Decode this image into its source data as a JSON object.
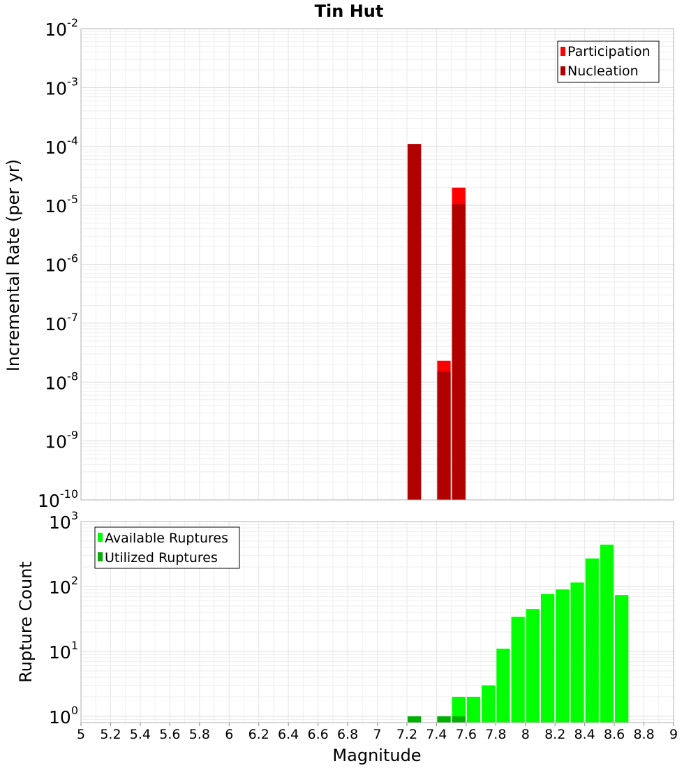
{
  "chart_data": [
    {
      "type": "bar",
      "title": "Tin Hut",
      "ylabel": "Incremental Rate (per yr)",
      "xlabel": "",
      "yscale": "log",
      "ylim": [
        1e-10,
        0.01
      ],
      "xlim": [
        5,
        9
      ],
      "bin_width": 0.1,
      "grid": true,
      "legend_position": "top-right",
      "y_ticks": [
        {
          "base": "10",
          "exp": "-2",
          "value": 0.01
        },
        {
          "base": "10",
          "exp": "-3",
          "value": 0.001
        },
        {
          "base": "10",
          "exp": "-4",
          "value": 0.0001
        },
        {
          "base": "10",
          "exp": "-5",
          "value": 1e-05
        },
        {
          "base": "10",
          "exp": "-6",
          "value": 1e-06
        },
        {
          "base": "10",
          "exp": "-7",
          "value": 1e-07
        },
        {
          "base": "10",
          "exp": "-8",
          "value": 1e-08
        },
        {
          "base": "10",
          "exp": "-9",
          "value": 1e-09
        },
        {
          "base": "10",
          "exp": "-10",
          "value": 1e-10
        }
      ],
      "series": [
        {
          "name": "Participation",
          "color": "#ff0000",
          "x": [
            7.25,
            7.45,
            7.55
          ],
          "values": [
            0.00011,
            2.3e-08,
            2e-05
          ]
        },
        {
          "name": "Nucleation",
          "color": "#b00000",
          "x": [
            7.25,
            7.45,
            7.55
          ],
          "values": [
            0.00011,
            1.5e-08,
            1.05e-05
          ]
        }
      ]
    },
    {
      "type": "bar",
      "title": "",
      "ylabel": "Rupture Count",
      "xlabel": "Magnitude",
      "yscale": "log",
      "ylim": [
        0.8,
        1000
      ],
      "xlim": [
        5,
        9
      ],
      "bin_width": 0.1,
      "grid": true,
      "legend_position": "top-left",
      "x_ticks": [
        "5",
        "5.2",
        "5.4",
        "5.6",
        "5.8",
        "6",
        "6.2",
        "6.4",
        "6.6",
        "6.8",
        "7",
        "7.2",
        "7.4",
        "7.6",
        "7.8",
        "8",
        "8.2",
        "8.4",
        "8.6",
        "8.8",
        "9"
      ],
      "y_ticks": [
        {
          "base": "10",
          "exp": "3",
          "value": 1000
        },
        {
          "base": "10",
          "exp": "2",
          "value": 100
        },
        {
          "base": "10",
          "exp": "1",
          "value": 10
        },
        {
          "base": "10",
          "exp": "0",
          "value": 1
        }
      ],
      "series": [
        {
          "name": "Available Ruptures",
          "color": "#00ff00",
          "x": [
            7.25,
            7.45,
            7.55,
            7.65,
            7.75,
            7.85,
            7.95,
            8.05,
            8.15,
            8.25,
            8.35,
            8.45,
            8.55,
            8.65
          ],
          "values": [
            1,
            1,
            2,
            2,
            3,
            11,
            34,
            45,
            76,
            90,
            115,
            270,
            440,
            74
          ]
        },
        {
          "name": "Utilized Ruptures",
          "color": "#00b000",
          "x": [
            7.25,
            7.45,
            7.55
          ],
          "values": [
            1,
            1,
            1
          ]
        }
      ]
    }
  ]
}
